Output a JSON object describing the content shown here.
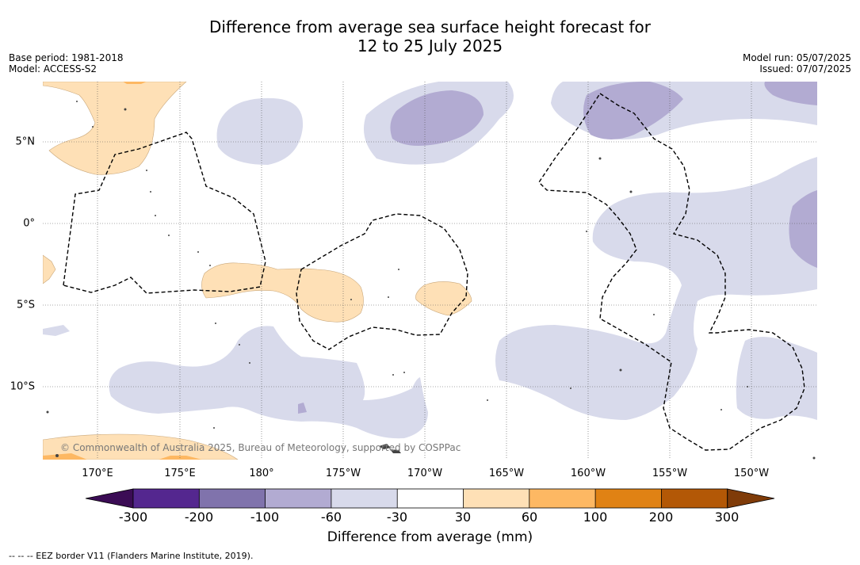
{
  "title": {
    "line1": "Difference from average sea surface height forecast for",
    "line2": "12 to 25 July 2025"
  },
  "meta_left": {
    "base_period": "Base period: 1981-2018",
    "model": "Model: ACCESS-S2"
  },
  "meta_right": {
    "model_run": "Model run: 05/07/2025",
    "issued": "Issued: 07/07/2025"
  },
  "map": {
    "credit": "© Commonwealth of Australia 2025, Bureau of Meteorology, supported by COSPPac",
    "lon_labels": [
      "170°E",
      "175°E",
      "180°",
      "175°W",
      "170°W",
      "165°W",
      "160°W",
      "155°W",
      "150°W"
    ],
    "lat_labels": [
      "5°N",
      "0°",
      "5°S",
      "10°S"
    ],
    "colors": {
      "land": "#444444",
      "eez_line": "#000000",
      "grid": "#555555"
    }
  },
  "colorbar": {
    "ticks": [
      "-300",
      "-200",
      "-100",
      "-60",
      "-30",
      "30",
      "60",
      "100",
      "200",
      "300"
    ],
    "colors": [
      "#3b0c55",
      "#54278f",
      "#8073ac",
      "#b2abd2",
      "#d8daeb",
      "#ffffff",
      "#fee0b6",
      "#fdb863",
      "#e08214",
      "#b35806",
      "#7f3b08"
    ],
    "title": "Difference from average (mm)"
  },
  "footnote": "--  --  -- EEZ border V11 (Flanders Marine Institute, 2019)."
}
